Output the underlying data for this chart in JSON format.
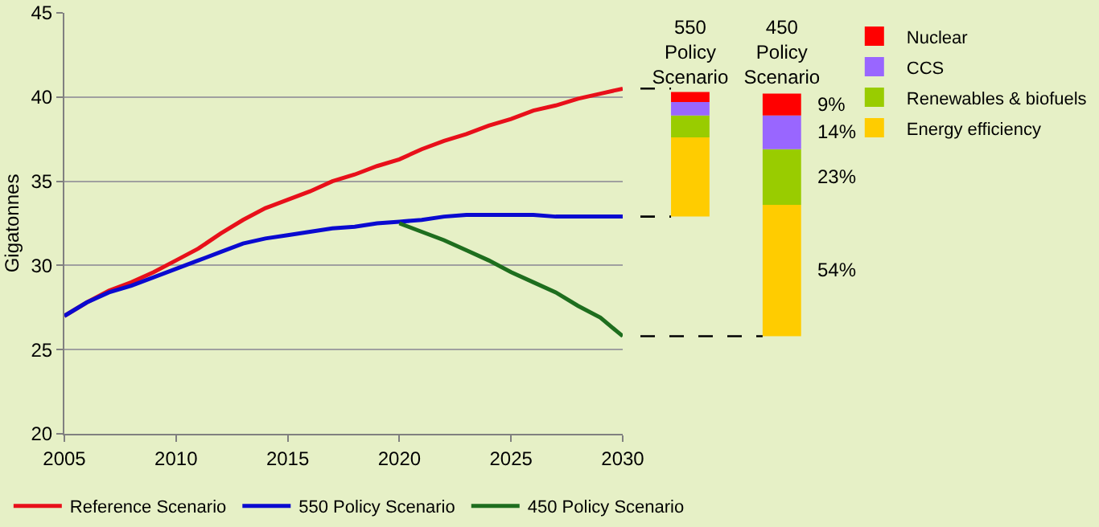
{
  "chart_data": [
    {
      "type": "line",
      "ylabel": "Gigatonnes",
      "x": [
        2005,
        2006,
        2007,
        2008,
        2009,
        2010,
        2011,
        2012,
        2013,
        2014,
        2015,
        2016,
        2017,
        2018,
        2019,
        2020,
        2021,
        2022,
        2023,
        2024,
        2025,
        2026,
        2027,
        2028,
        2029,
        2030
      ],
      "xlim": [
        2005,
        2030
      ],
      "xticks": [
        2005,
        2010,
        2015,
        2020,
        2025,
        2030
      ],
      "ylim": [
        20,
        45
      ],
      "yticks": [
        20,
        25,
        30,
        35,
        40,
        45
      ],
      "grid": "y",
      "legend": "bottom",
      "line_style": "solid",
      "marker": "none",
      "series": [
        {
          "name": "Reference Scenario",
          "color": "#e8101a",
          "values": [
            27.0,
            27.8,
            28.5,
            29.0,
            29.6,
            30.3,
            31.0,
            31.9,
            32.7,
            33.4,
            33.9,
            34.4,
            35.0,
            35.4,
            35.9,
            36.3,
            36.9,
            37.4,
            37.8,
            38.3,
            38.7,
            39.2,
            39.5,
            39.9,
            40.2,
            40.5
          ]
        },
        {
          "name": "550 Policy Scenario",
          "color": "#0a0ad0",
          "values": [
            27.0,
            27.8,
            28.4,
            28.8,
            29.3,
            29.8,
            30.3,
            30.8,
            31.3,
            31.6,
            31.8,
            32.0,
            32.2,
            32.3,
            32.5,
            32.6,
            32.7,
            32.9,
            33.0,
            33.0,
            33.0,
            33.0,
            32.9,
            32.9,
            32.9,
            32.9
          ]
        },
        {
          "name": "450 Policy Scenario",
          "color": "#1e6e1e",
          "x": [
            2020,
            2021,
            2022,
            2023,
            2024,
            2025,
            2026,
            2027,
            2028,
            2029,
            2030
          ],
          "values": [
            32.5,
            32.0,
            31.5,
            30.9,
            30.3,
            29.6,
            29.0,
            28.4,
            27.6,
            26.9,
            25.8
          ]
        }
      ]
    },
    {
      "type": "bar",
      "categories": [
        "550 Policy Scenario",
        "450 Policy Scenario"
      ],
      "ylim": [
        20,
        45
      ],
      "tick_labels": "x",
      "grid": false,
      "legend": "right",
      "annotations": [
        "9%",
        "14%",
        "23%",
        "54%"
      ],
      "ref_lines": [
        {
          "axis": "y",
          "value": 40.5,
          "color": "#000000",
          "line_style": "dashed"
        },
        {
          "axis": "y",
          "value": 32.9,
          "color": "#000000",
          "line_style": "dashed"
        },
        {
          "axis": "y",
          "value": 25.8,
          "color": "#000000",
          "line_style": "dashed"
        }
      ],
      "series": [
        {
          "name": "Energy efficiency",
          "color": "#ffcc00",
          "base": [
            32.9,
            25.8
          ],
          "values": [
            4.7,
            7.8
          ]
        },
        {
          "name": "Renewables & biofuels",
          "color": "#99cc00",
          "base": [
            37.6,
            33.6
          ],
          "values": [
            1.3,
            3.3
          ]
        },
        {
          "name": "CCS",
          "color": "#9966ff",
          "base": [
            38.9,
            36.9
          ],
          "values": [
            0.8,
            2.0
          ]
        },
        {
          "name": "Nuclear",
          "color": "#ff0000",
          "base": [
            39.7,
            38.9
          ],
          "values": [
            0.6,
            1.3
          ]
        }
      ]
    }
  ]
}
